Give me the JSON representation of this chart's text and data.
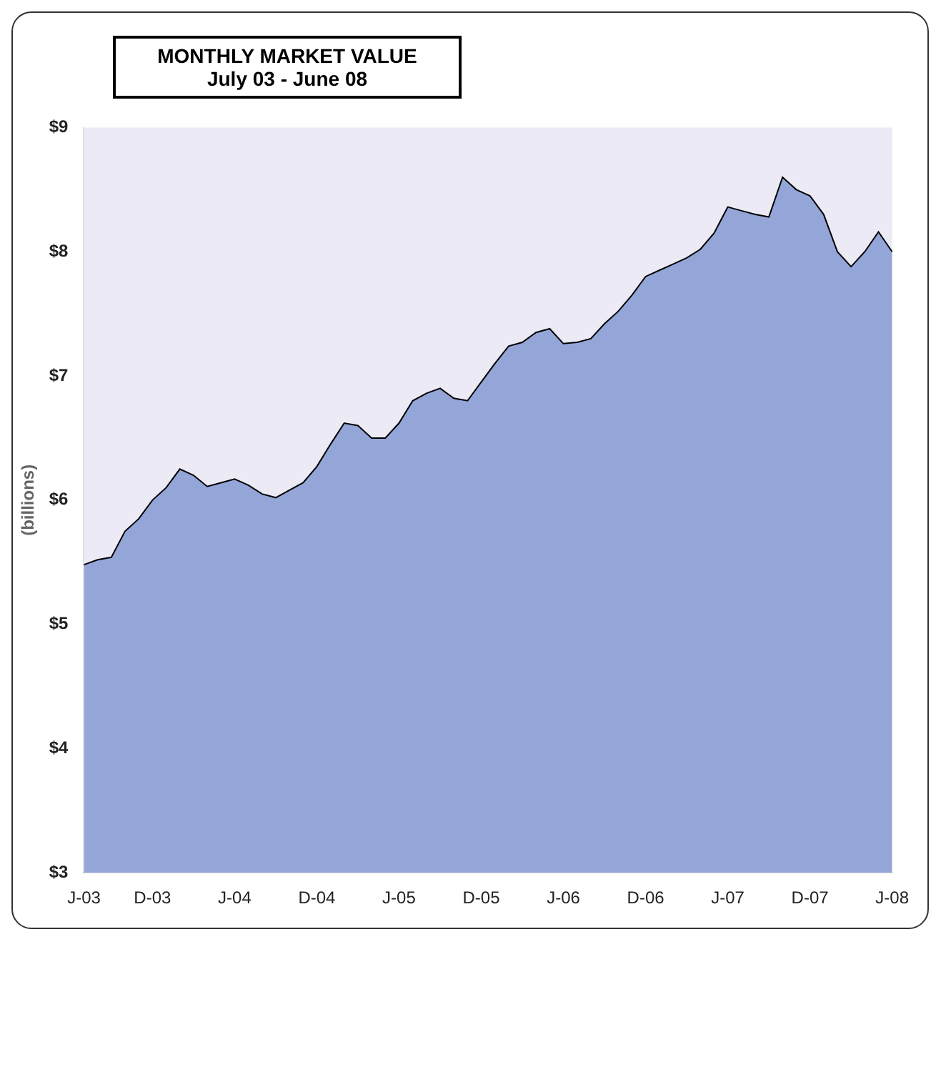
{
  "chart_data": {
    "type": "area",
    "title": "MONTHLY MARKET VALUE",
    "subtitle": "July 03 - June 08",
    "ylabel": "(billions)",
    "categories": [
      "J-03",
      null,
      null,
      null,
      null,
      "D-03",
      null,
      null,
      null,
      null,
      null,
      "J-04",
      null,
      null,
      null,
      null,
      null,
      "D-04",
      null,
      null,
      null,
      null,
      null,
      "J-05",
      null,
      null,
      null,
      null,
      null,
      "D-05",
      null,
      null,
      null,
      null,
      null,
      "J-06",
      null,
      null,
      null,
      null,
      null,
      "D-06",
      null,
      null,
      null,
      null,
      null,
      "J-07",
      null,
      null,
      null,
      null,
      null,
      "D-07",
      null,
      null,
      null,
      null,
      null,
      "J-08"
    ],
    "series": [
      {
        "color": "#94a5d8",
        "values": [
          5.48,
          5.52,
          5.54,
          5.75,
          5.85,
          6.0,
          6.1,
          6.25,
          6.2,
          6.11,
          6.14,
          6.17,
          6.12,
          6.05,
          6.02,
          6.08,
          6.14,
          6.27,
          6.45,
          6.62,
          6.6,
          6.5,
          6.5,
          6.62,
          6.8,
          6.86,
          6.9,
          6.82,
          6.8,
          6.95,
          7.1,
          7.24,
          7.27,
          7.35,
          7.38,
          7.26,
          7.27,
          7.3,
          7.42,
          7.52,
          7.65,
          7.8,
          7.85,
          7.9,
          7.95,
          8.02,
          8.15,
          8.36,
          8.33,
          8.3,
          8.28,
          8.6,
          8.5,
          8.45,
          8.3,
          8.0,
          7.88,
          8.0,
          8.16,
          8.0
        ]
      }
    ],
    "ylim": [
      3,
      9
    ],
    "yticks": [
      {
        "value": 3,
        "label": "$3"
      },
      {
        "value": 4,
        "label": "$4"
      },
      {
        "value": 5,
        "label": "$5"
      },
      {
        "value": 6,
        "label": "$6"
      },
      {
        "value": 7,
        "label": "$7"
      },
      {
        "value": 8,
        "label": "$8"
      },
      {
        "value": 9,
        "label": "$9"
      }
    ]
  }
}
